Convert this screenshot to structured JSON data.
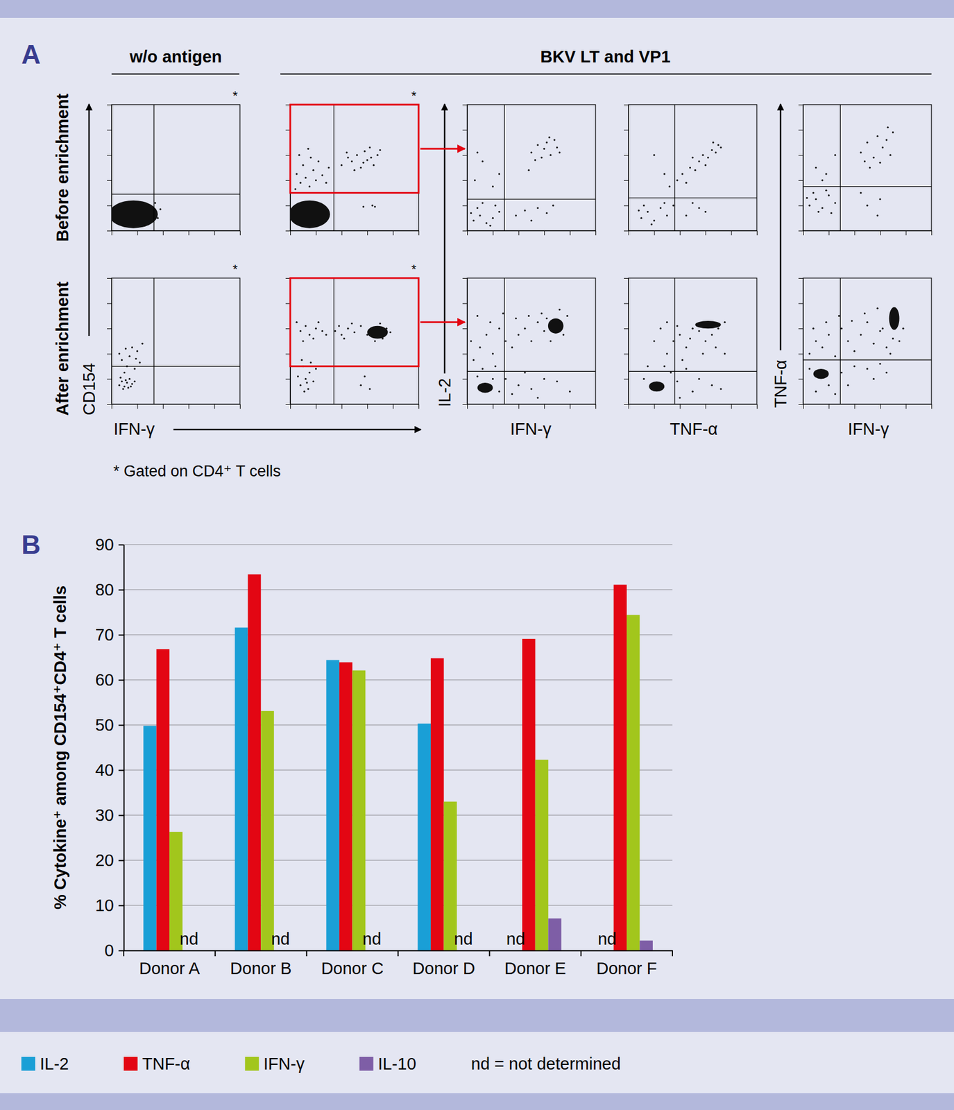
{
  "panel_a": {
    "panel_label": "A",
    "headers": [
      "w/o antigen",
      "BKV LT and VP1"
    ],
    "rows": [
      "Before enrichment",
      "After enrichment"
    ],
    "y_labels": [
      "CD154",
      "IL-2",
      "TNF-α"
    ],
    "x_labels": [
      "IFN-γ",
      "IFN-γ",
      "TNF-α",
      "IFN-γ"
    ],
    "footnote": "* Gated on CD4⁺ T cells"
  },
  "chart_data": [
    {
      "type": "scatter",
      "xlim": [
        0,
        100
      ],
      "ylim": [
        0,
        100
      ],
      "xticks": [
        0,
        20,
        40,
        60,
        80,
        100
      ],
      "yticks": [
        0,
        20,
        40,
        60,
        80,
        100
      ],
      "tick_labels": false,
      "note": "*",
      "quadrant": {
        "x": 33,
        "y": 29
      },
      "clusters": [
        {
          "x": 17,
          "y": 13,
          "rx": 19,
          "ry": 11
        }
      ],
      "x": [
        36,
        38,
        34
      ],
      "y": [
        10,
        17,
        22
      ]
    },
    {
      "type": "scatter",
      "xlim": [
        0,
        100
      ],
      "ylim": [
        0,
        100
      ],
      "xticks": [
        0,
        20,
        40,
        60,
        80,
        100
      ],
      "yticks": [
        0,
        20,
        40,
        60,
        80,
        100
      ],
      "tick_labels": false,
      "note": "*",
      "quadrant": {
        "x": 34,
        "y": 30
      },
      "gate": {
        "x": [
          0,
          100
        ],
        "y": [
          30,
          100
        ]
      },
      "clusters": [
        {
          "x": 15,
          "y": 13,
          "rx": 16,
          "ry": 11
        }
      ],
      "x": [
        8,
        12,
        5,
        15,
        20,
        10,
        18,
        25,
        7,
        14,
        22,
        28,
        4,
        16,
        30,
        40,
        45,
        48,
        52,
        55,
        58,
        60,
        62,
        65,
        68,
        70,
        50,
        63,
        44,
        57,
        57,
        64,
        66
      ],
      "y": [
        38,
        42,
        45,
        35,
        40,
        52,
        48,
        44,
        60,
        65,
        55,
        38,
        33,
        58,
        50,
        52,
        58,
        55,
        60,
        50,
        63,
        56,
        66,
        52,
        60,
        64,
        48,
        58,
        62,
        54,
        19,
        20,
        19
      ]
    },
    {
      "type": "scatter",
      "xlim": [
        0,
        100
      ],
      "ylim": [
        0,
        100
      ],
      "xticks": [
        0,
        20,
        40,
        60,
        80,
        100
      ],
      "yticks": [
        0,
        20,
        40,
        60,
        80,
        100
      ],
      "tick_labels": false,
      "quadrant": {
        "x": 29,
        "y": 25
      },
      "x": [
        5,
        10,
        15,
        8,
        20,
        12,
        25,
        18,
        3,
        22,
        6,
        12,
        20,
        8,
        25,
        50,
        55,
        60,
        62,
        65,
        68,
        58,
        70,
        53,
        64,
        48,
        72,
        45,
        55,
        62,
        67,
        38,
        50
      ],
      "y": [
        8,
        12,
        6,
        18,
        10,
        22,
        15,
        4,
        14,
        20,
        40,
        55,
        35,
        62,
        45,
        62,
        68,
        65,
        70,
        60,
        72,
        58,
        66,
        56,
        74,
        48,
        62,
        16,
        18,
        14,
        20,
        12,
        8
      ]
    },
    {
      "type": "scatter",
      "xlim": [
        0,
        100
      ],
      "ylim": [
        0,
        100
      ],
      "xticks": [
        0,
        20,
        40,
        60,
        80,
        100
      ],
      "yticks": [
        0,
        20,
        40,
        60,
        80,
        100
      ],
      "tick_labels": false,
      "quadrant": {
        "x": 36,
        "y": 26
      },
      "x": [
        10,
        15,
        20,
        25,
        12,
        30,
        18,
        28,
        8,
        35,
        38,
        42,
        48,
        52,
        55,
        58,
        62,
        65,
        68,
        70,
        72,
        60,
        45,
        50,
        66,
        20,
        28,
        32,
        45,
        55,
        60,
        50
      ],
      "y": [
        10,
        15,
        8,
        18,
        20,
        12,
        5,
        22,
        16,
        20,
        40,
        45,
        50,
        48,
        55,
        60,
        58,
        64,
        62,
        68,
        66,
        52,
        38,
        58,
        70,
        60,
        45,
        35,
        12,
        18,
        15,
        22
      ]
    },
    {
      "type": "scatter",
      "xlim": [
        0,
        100
      ],
      "ylim": [
        0,
        100
      ],
      "xticks": [
        0,
        20,
        40,
        60,
        80,
        100
      ],
      "yticks": [
        0,
        20,
        40,
        60,
        80,
        100
      ],
      "tick_labels": false,
      "quadrant": {
        "x": 29,
        "y": 35
      },
      "x": [
        5,
        10,
        15,
        20,
        8,
        12,
        25,
        18,
        3,
        22,
        10,
        18,
        25,
        15,
        45,
        50,
        55,
        58,
        62,
        65,
        68,
        52,
        60,
        70,
        48,
        66,
        50,
        60,
        58,
        45
      ],
      "y": [
        20,
        25,
        18,
        28,
        30,
        15,
        22,
        32,
        26,
        14,
        50,
        45,
        60,
        40,
        62,
        70,
        58,
        75,
        66,
        72,
        60,
        50,
        54,
        78,
        55,
        82,
        20,
        25,
        12,
        30
      ]
    },
    {
      "type": "scatter",
      "xlim": [
        0,
        100
      ],
      "ylim": [
        0,
        100
      ],
      "xticks": [
        0,
        20,
        40,
        60,
        80,
        100
      ],
      "yticks": [
        0,
        20,
        40,
        60,
        80,
        100
      ],
      "tick_labels": false,
      "note": "*",
      "quadrant": {
        "x": 33,
        "y": 30
      },
      "x": [
        6,
        8,
        10,
        12,
        14,
        9,
        16,
        11,
        13,
        7,
        15,
        18,
        10,
        12,
        8,
        14,
        20,
        16,
        22,
        6,
        18,
        24,
        11,
        19
      ],
      "y": [
        15,
        18,
        14,
        17,
        20,
        12,
        16,
        19,
        13,
        21,
        14,
        18,
        25,
        30,
        35,
        38,
        42,
        45,
        33,
        40,
        28,
        48,
        44,
        36
      ]
    },
    {
      "type": "scatter",
      "xlim": [
        0,
        100
      ],
      "ylim": [
        0,
        100
      ],
      "xticks": [
        0,
        20,
        40,
        60,
        80,
        100
      ],
      "yticks": [
        0,
        20,
        40,
        60,
        80,
        100
      ],
      "tick_labels": false,
      "note": "*",
      "quadrant": {
        "x": 34,
        "y": 30
      },
      "gate": {
        "x": [
          0,
          100
        ],
        "y": [
          30,
          100
        ]
      },
      "clusters": [
        {
          "x": 68,
          "y": 57,
          "rx": 8,
          "ry": 5
        }
      ],
      "x": [
        8,
        12,
        15,
        10,
        18,
        6,
        14,
        20,
        9,
        16,
        11,
        13,
        8,
        12,
        15,
        20,
        5,
        18,
        25,
        10,
        22,
        28,
        35,
        40,
        45,
        50,
        55,
        42,
        48,
        38,
        60,
        63,
        72,
        75,
        78,
        66,
        70,
        55,
        62,
        58
      ],
      "y": [
        15,
        20,
        25,
        30,
        18,
        22,
        12,
        28,
        35,
        33,
        10,
        17,
        58,
        62,
        55,
        60,
        65,
        52,
        58,
        50,
        65,
        55,
        58,
        55,
        60,
        57,
        62,
        52,
        64,
        62,
        55,
        60,
        52,
        60,
        57,
        50,
        64,
        15,
        12,
        22
      ]
    },
    {
      "type": "scatter",
      "xlim": [
        0,
        100
      ],
      "ylim": [
        0,
        100
      ],
      "xticks": [
        0,
        20,
        40,
        60,
        80,
        100
      ],
      "yticks": [
        0,
        20,
        40,
        60,
        80,
        100
      ],
      "tick_labels": false,
      "quadrant": {
        "x": 29,
        "y": 26
      },
      "clusters": [
        {
          "x": 69,
          "y": 62,
          "rx": 6,
          "ry": 6
        },
        {
          "x": 14,
          "y": 13,
          "rx": 6,
          "ry": 4
        }
      ],
      "x": [
        5,
        10,
        15,
        20,
        25,
        8,
        18,
        30,
        35,
        40,
        45,
        50,
        55,
        60,
        28,
        38,
        48,
        58,
        75,
        78,
        65,
        62,
        72,
        3,
        22,
        12,
        30,
        40,
        50,
        60,
        70,
        80,
        45,
        25,
        35,
        55,
        20,
        8
      ],
      "y": [
        35,
        45,
        55,
        40,
        60,
        70,
        65,
        50,
        45,
        55,
        60,
        50,
        65,
        58,
        72,
        68,
        70,
        72,
        55,
        70,
        50,
        68,
        75,
        50,
        30,
        28,
        20,
        15,
        12,
        20,
        18,
        10,
        25,
        10,
        8,
        5,
        20,
        22
      ]
    },
    {
      "type": "scatter",
      "xlim": [
        0,
        100
      ],
      "ylim": [
        0,
        100
      ],
      "xticks": [
        0,
        20,
        40,
        60,
        80,
        100
      ],
      "yticks": [
        0,
        20,
        40,
        60,
        80,
        100
      ],
      "tick_labels": false,
      "quadrant": {
        "x": 36,
        "y": 26
      },
      "clusters": [
        {
          "x": 62,
          "y": 63,
          "rx": 10,
          "ry": 3
        },
        {
          "x": 22,
          "y": 14,
          "rx": 6,
          "ry": 4
        }
      ],
      "x": [
        30,
        35,
        40,
        45,
        50,
        38,
        42,
        48,
        55,
        60,
        65,
        70,
        75,
        28,
        33,
        45,
        55,
        65,
        72,
        50,
        38,
        25,
        20,
        30,
        58,
        68,
        75,
        15,
        12,
        40
      ],
      "y": [
        40,
        50,
        55,
        45,
        60,
        62,
        35,
        52,
        58,
        50,
        55,
        60,
        65,
        30,
        25,
        28,
        20,
        15,
        12,
        10,
        18,
        60,
        50,
        65,
        40,
        45,
        40,
        30,
        20,
        5
      ]
    },
    {
      "type": "scatter",
      "xlim": [
        0,
        100
      ],
      "ylim": [
        0,
        100
      ],
      "xticks": [
        0,
        20,
        40,
        60,
        80,
        100
      ],
      "yticks": [
        0,
        20,
        40,
        60,
        80,
        100
      ],
      "tick_labels": false,
      "quadrant": {
        "x": 29,
        "y": 35
      },
      "clusters": [
        {
          "x": 71,
          "y": 68,
          "rx": 4,
          "ry": 9
        },
        {
          "x": 14,
          "y": 24,
          "rx": 6,
          "ry": 4
        }
      ],
      "x": [
        5,
        10,
        15,
        20,
        25,
        30,
        35,
        40,
        45,
        50,
        55,
        60,
        65,
        70,
        8,
        18,
        28,
        38,
        48,
        58,
        62,
        75,
        78,
        68,
        40,
        50,
        60,
        30,
        20,
        10,
        35,
        25,
        55,
        65,
        5
      ],
      "y": [
        40,
        50,
        45,
        55,
        38,
        60,
        50,
        42,
        55,
        65,
        48,
        58,
        45,
        52,
        60,
        65,
        70,
        66,
        72,
        76,
        60,
        50,
        60,
        40,
        30,
        28,
        32,
        25,
        15,
        10,
        15,
        8,
        20,
        25,
        28
      ]
    },
    {
      "type": "bar",
      "panel_label": "B",
      "y_label": "% Cytokine⁺ among CD154⁺CD4⁺ T cells",
      "categories": [
        "Donor A",
        "Donor B",
        "Donor C",
        "Donor D",
        "Donor E",
        "Donor F"
      ],
      "series": [
        {
          "name": "IL-2",
          "color": "#1a9fd6",
          "values": [
            49.8,
            71.6,
            64.4,
            50.3,
            null,
            null
          ]
        },
        {
          "name": "TNF-α",
          "color": "#e30613",
          "values": [
            66.8,
            83.4,
            63.9,
            64.8,
            69.1,
            81.1
          ]
        },
        {
          "name": "IFN-γ",
          "color": "#a2c61c",
          "values": [
            26.3,
            53.1,
            62.1,
            33.0,
            42.3,
            74.4
          ]
        },
        {
          "name": "IL-10",
          "color": "#7e5ea6",
          "values": [
            null,
            null,
            null,
            null,
            7.1,
            2.2
          ]
        }
      ],
      "missing_label": "nd",
      "missing_note": "nd = not determined",
      "ylim": [
        0,
        90
      ],
      "yticks": [
        0,
        10,
        20,
        30,
        40,
        50,
        60,
        70,
        80,
        90
      ],
      "grid": true,
      "legend": "bottom"
    }
  ]
}
